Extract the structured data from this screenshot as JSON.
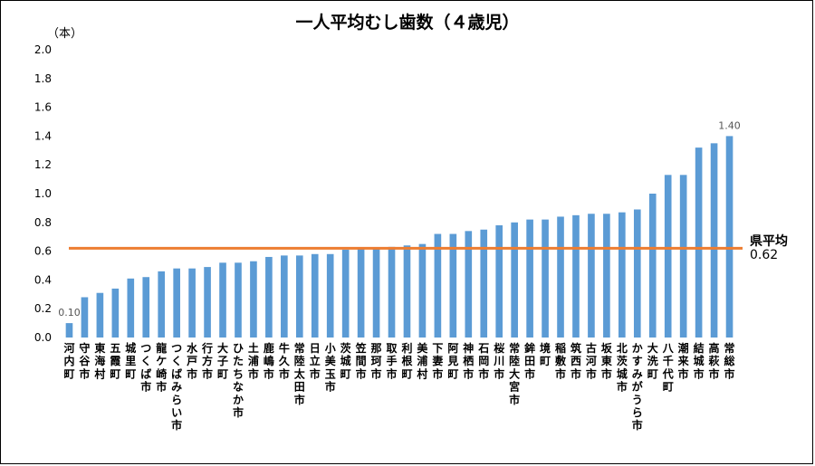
{
  "chart_data": {
    "type": "bar",
    "title": "一人平均むし歯数（４歳児）",
    "ylabel": "（本）",
    "ylim": [
      0,
      2.0
    ],
    "yticks": [
      "0.0",
      "0.2",
      "0.4",
      "0.6",
      "0.8",
      "1.0",
      "1.2",
      "1.4",
      "1.6",
      "1.8",
      "2.0"
    ],
    "grid": false,
    "bar_color": "#5b9bd5",
    "categories": [
      "河内町",
      "守谷市",
      "東海村",
      "五霞町",
      "城里町",
      "つくば市",
      "龍ケ崎市",
      "つくばみらい市",
      "水戸市",
      "行方市",
      "大子町",
      "ひたちなか市",
      "土浦市",
      "鹿嶋市",
      "牛久市",
      "常陸太田市",
      "日立市",
      "小美玉市",
      "茨城町",
      "笠間市",
      "那珂市",
      "取手市",
      "利根町",
      "美浦村",
      "下妻市",
      "阿見町",
      "神栖市",
      "石岡市",
      "桜川市",
      "常陸大宮市",
      "鉾田市",
      "境町",
      "稲敷市",
      "筑西市",
      "古河市",
      "坂東市",
      "北茨城市",
      "かすみがうら市",
      "大洗町",
      "八千代町",
      "潮来市",
      "結城市",
      "高萩市",
      "常総市"
    ],
    "values": [
      0.1,
      0.28,
      0.31,
      0.34,
      0.41,
      0.42,
      0.46,
      0.48,
      0.48,
      0.49,
      0.52,
      0.52,
      0.53,
      0.56,
      0.57,
      0.57,
      0.58,
      0.58,
      0.61,
      0.62,
      0.62,
      0.63,
      0.64,
      0.65,
      0.72,
      0.72,
      0.74,
      0.75,
      0.78,
      0.8,
      0.82,
      0.82,
      0.84,
      0.85,
      0.86,
      0.86,
      0.87,
      0.89,
      1.0,
      1.13,
      1.13,
      1.32,
      1.35,
      1.4
    ],
    "data_labels": [
      {
        "index": 0,
        "text": "0.10"
      },
      {
        "index": 43,
        "text": "1.40"
      }
    ],
    "reference_line": {
      "name": "県平均",
      "value": 0.62,
      "value_label": "0.62",
      "color": "#ed7d31"
    }
  }
}
